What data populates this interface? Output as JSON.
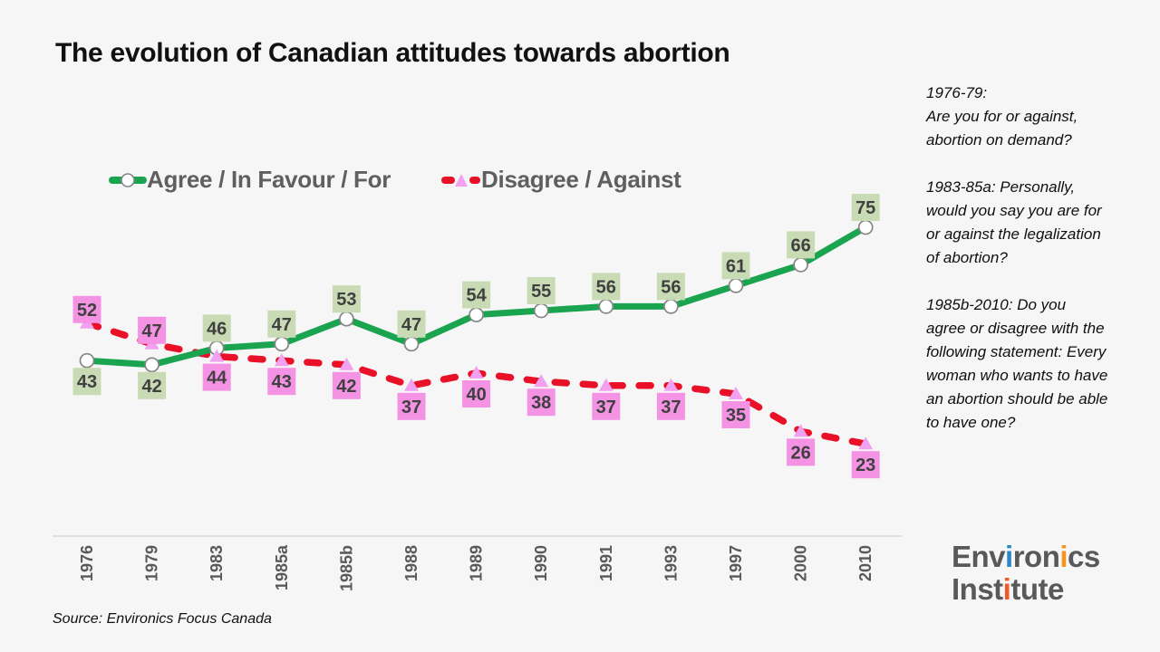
{
  "slide": {
    "title": "The evolution of Canadian attitudes towards abortion",
    "source": "Source: Environics Focus Canada",
    "background": "#f6f6f6"
  },
  "chart_data": {
    "type": "line",
    "title": "The evolution of Canadian attitudes towards abortion",
    "categories": [
      "1976",
      "1979",
      "1983",
      "1985a",
      "1985b",
      "1988",
      "1989",
      "1990",
      "1991",
      "1993",
      "1997",
      "2000",
      "2010"
    ],
    "series": [
      {
        "name": "Agree / In Favour / For",
        "values": [
          43,
          42,
          46,
          47,
          53,
          47,
          54,
          55,
          56,
          56,
          61,
          66,
          75
        ],
        "color": "#1aa450",
        "line_style": "solid",
        "marker": "circle",
        "marker_fill": "#ffffff",
        "marker_stroke": "#858585",
        "label_bg": "#c9dbb5",
        "label_positions": [
          "below",
          "below",
          "above",
          "above",
          "above",
          "above",
          "above",
          "above",
          "above",
          "above",
          "above",
          "above",
          "above"
        ]
      },
      {
        "name": "Disagree / Against",
        "values": [
          52,
          47,
          44,
          43,
          42,
          37,
          40,
          38,
          37,
          37,
          35,
          26,
          23
        ],
        "color": "#e81128",
        "line_style": "dashed",
        "marker": "triangle",
        "marker_fill": "#f2a0f0",
        "label_bg": "#f492e4",
        "label_positions": [
          "above",
          "above",
          "below",
          "below",
          "below",
          "below",
          "below",
          "below",
          "below",
          "below",
          "below",
          "below",
          "below"
        ]
      }
    ],
    "ylim": [
      0,
      100
    ],
    "grid": false,
    "legend_position": "top",
    "x_axis": {
      "label_rotation": -90,
      "axis_color": "#d9d9d9",
      "label_color": "#595959"
    },
    "data_label_color": "#404040"
  },
  "notes": [
    "1976-79:\nAre you for or against, abortion on demand?",
    "1983-85a: Personally, would you say you are for or against the legalization of abortion?",
    "1985b-2010: Do you agree or disagree with the following statement: Every woman who wants to have an abortion should be able to have one?"
  ],
  "logo": {
    "line1": [
      {
        "t": "Env",
        "c": "#58595b"
      },
      {
        "t": "i",
        "c": "#2b87c8"
      },
      {
        "t": "ron",
        "c": "#58595b"
      },
      {
        "t": "i",
        "c": "#f7941e"
      },
      {
        "t": "cs",
        "c": "#58595b"
      }
    ],
    "line2": [
      {
        "t": "Inst",
        "c": "#58595b"
      },
      {
        "t": "i",
        "c": "#f05a28"
      },
      {
        "t": "tute",
        "c": "#58595b"
      }
    ]
  }
}
